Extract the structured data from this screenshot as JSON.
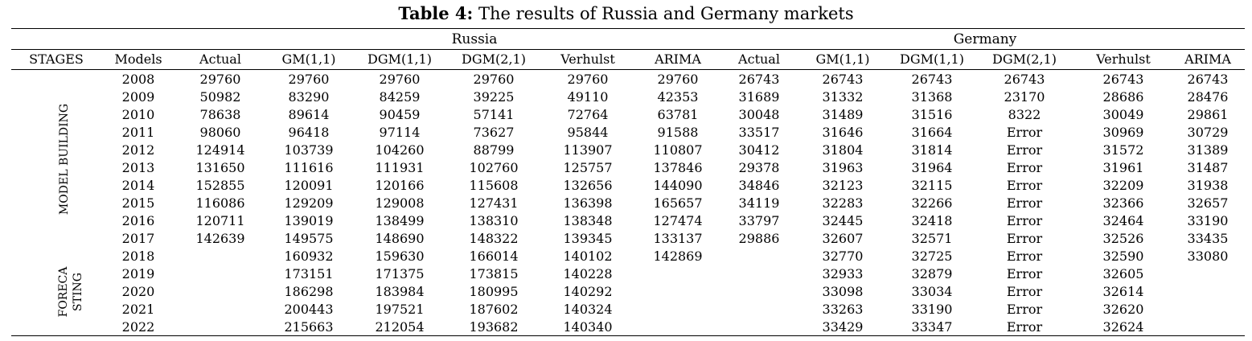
{
  "caption": {
    "label": "Table 4:",
    "text": " The results of Russia and Germany markets"
  },
  "groups": {
    "russia": "Russia",
    "germany": "Germany"
  },
  "headers": [
    "STAGES",
    "Models",
    "Actual",
    "GM(1,1)",
    "DGM(1,1)",
    "DGM(2,1)",
    "Verhulst",
    "ARIMA",
    "Actual",
    "GM(1,1)",
    "DGM(1,1)",
    "DGM(2,1)",
    "Verhulst",
    "ARIMA"
  ],
  "stages": {
    "model_building": "MODEL BUILDING",
    "forecasting_line1": "FORECA",
    "forecasting_line2": "STING"
  },
  "rows": [
    [
      "2008",
      "29760",
      "29760",
      "29760",
      "29760",
      "29760",
      "29760",
      "26743",
      "26743",
      "26743",
      "26743",
      "26743",
      "26743"
    ],
    [
      "2009",
      "50982",
      "83290",
      "84259",
      "39225",
      "49110",
      "42353",
      "31689",
      "31332",
      "31368",
      "23170",
      "28686",
      "28476"
    ],
    [
      "2010",
      "78638",
      "89614",
      "90459",
      "57141",
      "72764",
      "63781",
      "30048",
      "31489",
      "31516",
      "8322",
      "30049",
      "29861"
    ],
    [
      "2011",
      "98060",
      "96418",
      "97114",
      "73627",
      "95844",
      "91588",
      "33517",
      "31646",
      "31664",
      "Error",
      "30969",
      "30729"
    ],
    [
      "2012",
      "124914",
      "103739",
      "104260",
      "88799",
      "113907",
      "110807",
      "30412",
      "31804",
      "31814",
      "Error",
      "31572",
      "31389"
    ],
    [
      "2013",
      "131650",
      "111616",
      "111931",
      "102760",
      "125757",
      "137846",
      "29378",
      "31963",
      "31964",
      "Error",
      "31961",
      "31487"
    ],
    [
      "2014",
      "152855",
      "120091",
      "120166",
      "115608",
      "132656",
      "144090",
      "34846",
      "32123",
      "32115",
      "Error",
      "32209",
      "31938"
    ],
    [
      "2015",
      "116086",
      "129209",
      "129008",
      "127431",
      "136398",
      "165657",
      "34119",
      "32283",
      "32266",
      "Error",
      "32366",
      "32657"
    ],
    [
      "2016",
      "120711",
      "139019",
      "138499",
      "138310",
      "138348",
      "127474",
      "33797",
      "32445",
      "32418",
      "Error",
      "32464",
      "33190"
    ],
    [
      "2017",
      "142639",
      "149575",
      "148690",
      "148322",
      "139345",
      "133137",
      "29886",
      "32607",
      "32571",
      "Error",
      "32526",
      "33435"
    ],
    [
      "2018",
      "",
      "160932",
      "159630",
      "166014",
      "140102",
      "142869",
      "",
      "32770",
      "32725",
      "Error",
      "32590",
      "33080"
    ],
    [
      "2019",
      "",
      "173151",
      "171375",
      "173815",
      "140228",
      "",
      "",
      "32933",
      "32879",
      "Error",
      "32605",
      ""
    ],
    [
      "2020",
      "",
      "186298",
      "183984",
      "180995",
      "140292",
      "",
      "",
      "33098",
      "33034",
      "Error",
      "32614",
      ""
    ],
    [
      "2021",
      "",
      "200443",
      "197521",
      "187602",
      "140324",
      "",
      "",
      "33263",
      "33190",
      "Error",
      "32620",
      ""
    ],
    [
      "2022",
      "",
      "215663",
      "212054",
      "193682",
      "140340",
      "",
      "",
      "33429",
      "33347",
      "Error",
      "32624",
      ""
    ]
  ]
}
